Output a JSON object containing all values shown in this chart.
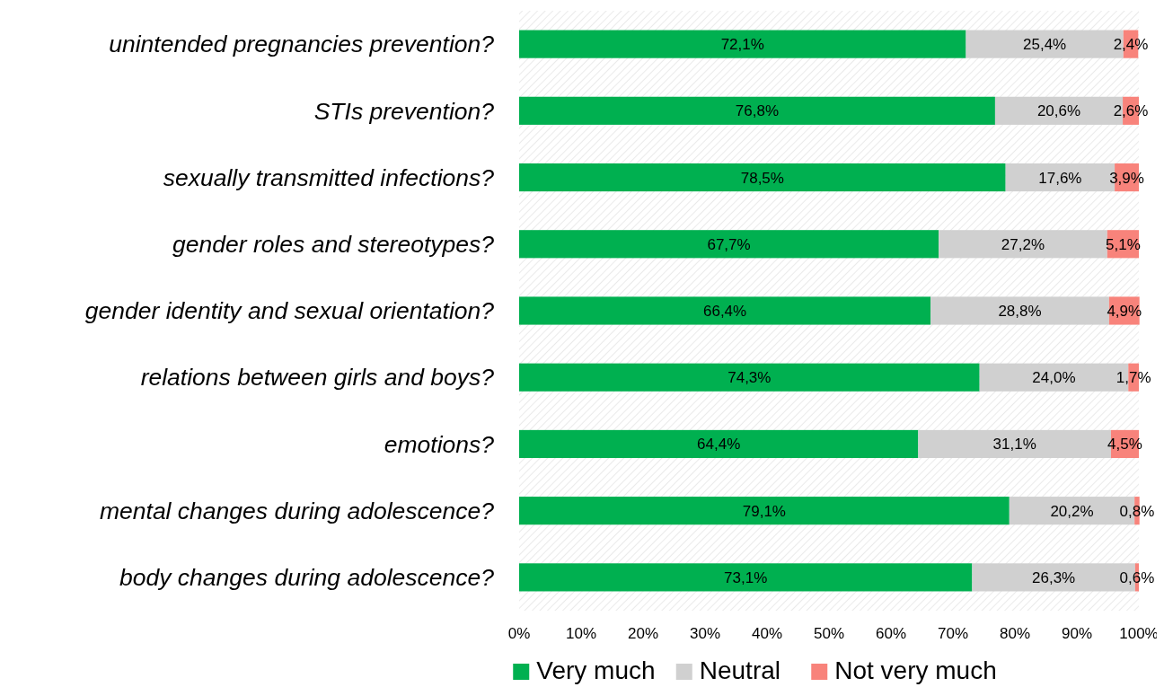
{
  "chart_data": {
    "type": "bar",
    "orientation": "horizontal",
    "stacked": true,
    "categories": [
      "unintended pregnancies prevention?",
      "STIs prevention?",
      "sexually transmitted infections?",
      "gender roles and stereotypes?",
      "gender identity and sexual orientation?",
      "relations between girls and boys?",
      "emotions?",
      "mental changes during adolescence?",
      "body changes during adolescence?"
    ],
    "series": [
      {
        "name": "Very much",
        "color": "#00b050",
        "values": [
          72.1,
          76.8,
          78.5,
          67.7,
          66.4,
          74.3,
          64.4,
          79.1,
          73.1
        ],
        "value_labels": [
          "72,1%",
          "76,8%",
          "78,5%",
          "67,7%",
          "66,4%",
          "74,3%",
          "64,4%",
          "79,1%",
          "73,1%"
        ]
      },
      {
        "name": "Neutral",
        "color": "#d0d0d0",
        "values": [
          25.4,
          20.6,
          17.6,
          27.2,
          28.8,
          24.0,
          31.1,
          20.2,
          26.3
        ],
        "value_labels": [
          "25,4%",
          "20,6%",
          "17,6%",
          "27,2%",
          "28,8%",
          "24,0%",
          "31,1%",
          "20,2%",
          "26,3%"
        ]
      },
      {
        "name": "Not very much",
        "color": "#f8837b",
        "values": [
          2.4,
          2.6,
          3.9,
          5.1,
          4.9,
          1.7,
          4.5,
          0.8,
          0.6
        ],
        "value_labels": [
          "2,4%",
          "2,6%",
          "3,9%",
          "5,1%",
          "4,9%",
          "1,7%",
          "4,5%",
          "0,8%",
          "0,6%"
        ]
      }
    ],
    "xlim": [
      0,
      100
    ],
    "xticks": [
      {
        "value": 0,
        "label": "0%"
      },
      {
        "value": 10,
        "label": "10%"
      },
      {
        "value": 20,
        "label": "20%"
      },
      {
        "value": 30,
        "label": "30%"
      },
      {
        "value": 40,
        "label": "40%"
      },
      {
        "value": 50,
        "label": "50%"
      },
      {
        "value": 60,
        "label": "60%"
      },
      {
        "value": 70,
        "label": "70%"
      },
      {
        "value": 80,
        "label": "80%"
      },
      {
        "value": 90,
        "label": "90%"
      },
      {
        "value": 100,
        "label": "100%"
      }
    ],
    "legend": "bottom"
  }
}
